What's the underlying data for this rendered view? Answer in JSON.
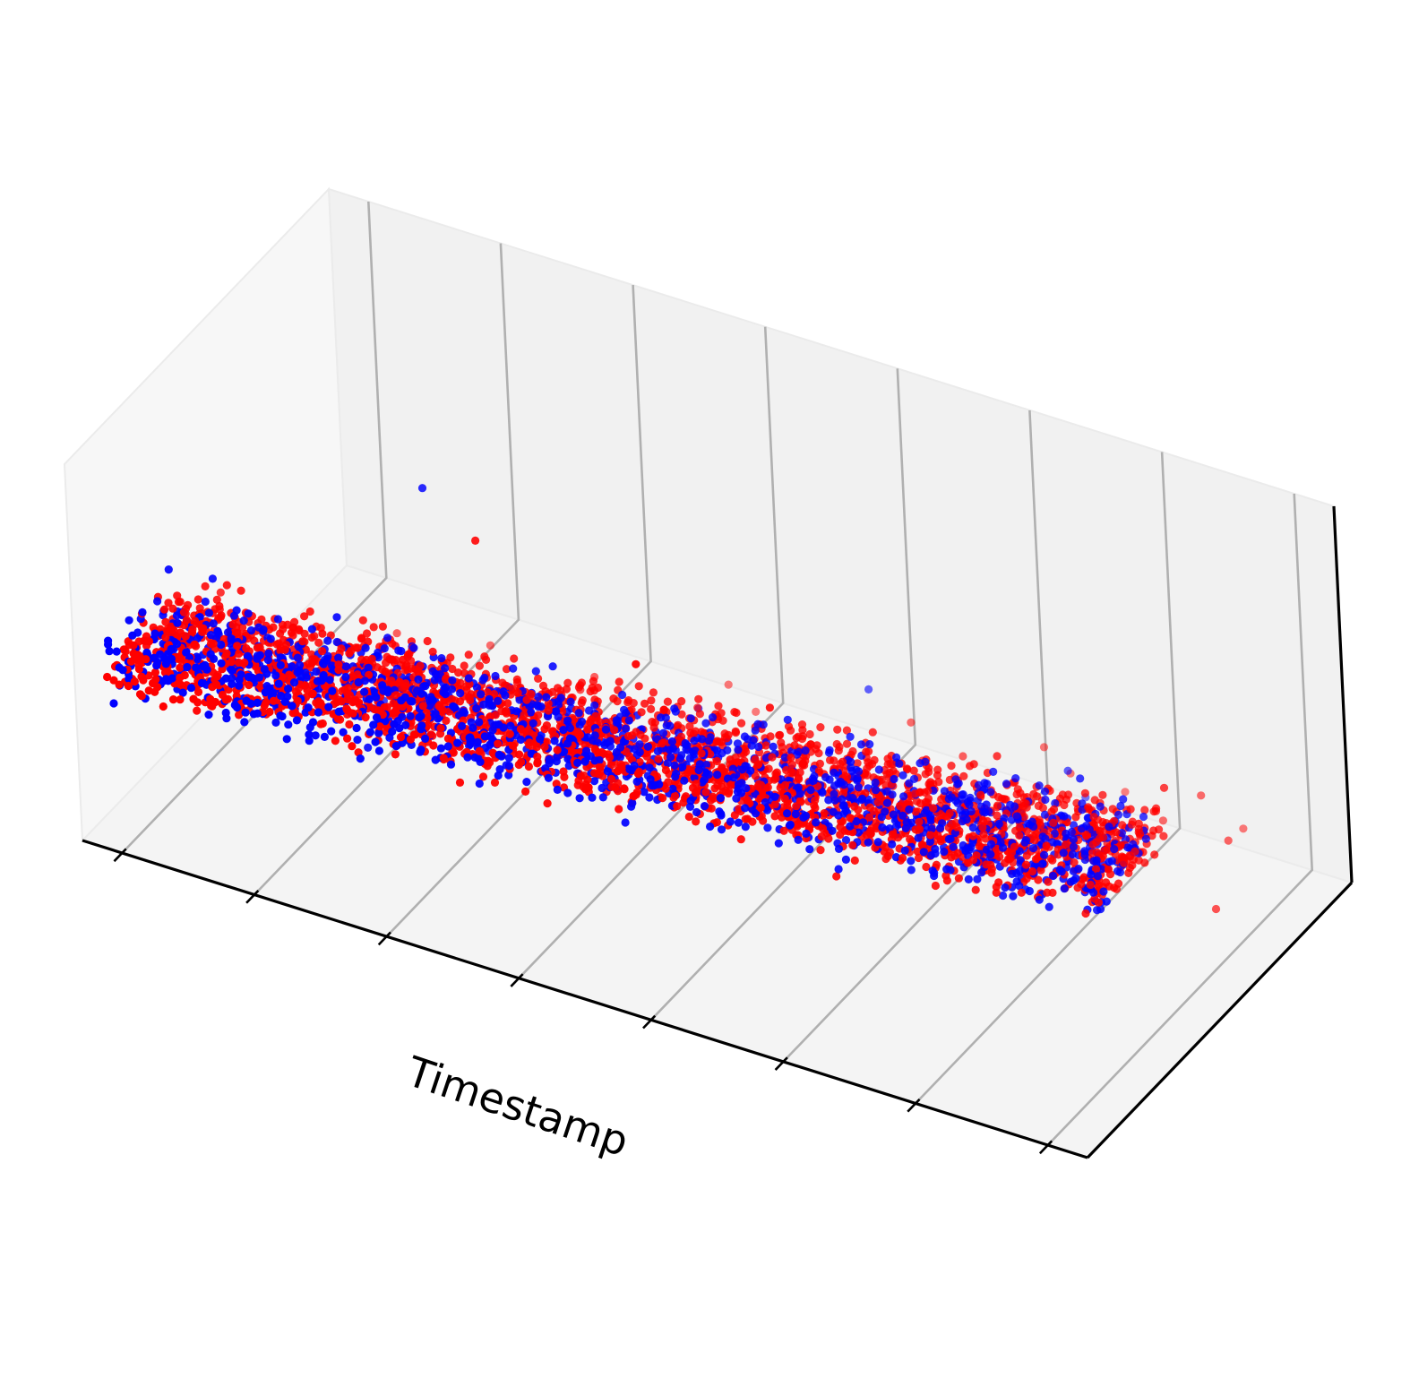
{
  "chart_data": {
    "type": "scatter",
    "projection": "3d",
    "title": "",
    "xlabel": "Timestamp",
    "ylabel": "",
    "zlabel": "",
    "tick_labels_visible": false,
    "grid": true,
    "legend": "none",
    "x_ticks": [
      0,
      1,
      2,
      3,
      4,
      5,
      6,
      7
    ],
    "xlim": [
      -0.3,
      7.3
    ],
    "ylim": [
      0,
      1
    ],
    "zlim": [
      0,
      1
    ],
    "colors": {
      "series_1": "#0000ff",
      "series_2": "#ff0000"
    },
    "series": [
      {
        "color": "#0000ff",
        "band": {
          "x_range": [
            0.0,
            7.0
          ],
          "y_center": [
            0.06,
            0.34
          ],
          "y_spread": 0.11,
          "z_center": [
            0.52,
            0.5
          ],
          "z_spread": 0.09,
          "count": 1500,
          "seed": 11
        },
        "outliers": [
          [
            1.8,
            0.3,
            0.95
          ],
          [
            2.0,
            0.4,
            0.2
          ],
          [
            3.2,
            0.6,
            0.3
          ],
          [
            0.5,
            0.6,
            0.1
          ],
          [
            1.0,
            0.5,
            0.15
          ],
          [
            5.5,
            0.9,
            0.1
          ],
          [
            5.8,
            0.7,
            0.35
          ],
          [
            6.2,
            0.5,
            0.3
          ],
          [
            1.5,
            0.2,
            0.3
          ],
          [
            4.3,
            0.7,
            0.4
          ],
          [
            4.1,
            0.3,
            0.35
          ]
        ]
      },
      {
        "color": "#ff0000",
        "band": {
          "x_range": [
            0.0,
            7.0
          ],
          "y_center": [
            0.1,
            0.36
          ],
          "y_spread": 0.13,
          "z_center": [
            0.5,
            0.49
          ],
          "z_spread": 0.08,
          "count": 2500,
          "seed": 29
        },
        "outliers": [
          [
            2.4,
            0.2,
            0.95
          ],
          [
            3.8,
            0.1,
            0.85
          ],
          [
            4.6,
            0.2,
            0.75
          ],
          [
            0.0,
            0.4,
            0.4
          ],
          [
            0.2,
            0.3,
            0.45
          ],
          [
            0.4,
            0.6,
            0.1
          ],
          [
            0.7,
            0.7,
            0.15
          ],
          [
            1.2,
            0.8,
            0.1
          ],
          [
            2.2,
            0.7,
            0.2
          ],
          [
            3.0,
            0.9,
            0.05
          ],
          [
            5.7,
            0.95,
            0.1
          ],
          [
            6.6,
            0.8,
            0.3
          ],
          [
            7.1,
            0.6,
            0.2
          ],
          [
            5.2,
            0.9,
            0.2
          ],
          [
            2.3,
            0.6,
            0.25
          ],
          [
            3.4,
            0.5,
            0.25
          ],
          [
            6.3,
            0.8,
            0.2
          ],
          [
            1.8,
            0.5,
            0.3
          ],
          [
            2.8,
            0.9,
            0.1
          ],
          [
            3.3,
            0.55,
            0.35
          ],
          [
            5.0,
            0.7,
            0.3
          ],
          [
            6.7,
            0.9,
            0.15
          ],
          [
            4.4,
            0.8,
            0.25
          ],
          [
            0.6,
            0.2,
            0.3
          ],
          [
            6.9,
            0.75,
            0.25
          ],
          [
            5.5,
            0.85,
            0.2
          ],
          [
            4.9,
            0.6,
            0.35
          ]
        ]
      }
    ]
  }
}
